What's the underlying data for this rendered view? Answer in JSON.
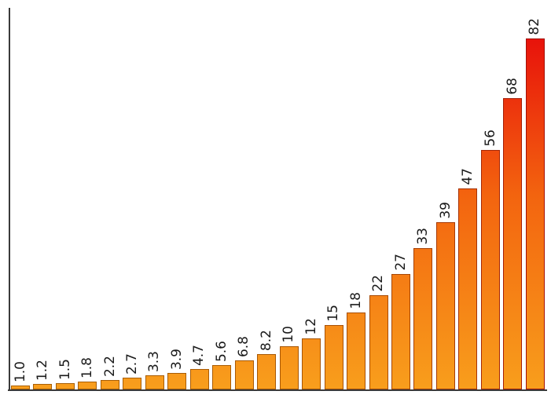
{
  "chart_data": {
    "type": "bar",
    "title": "",
    "xlabel": "",
    "ylabel": "",
    "categories": [
      "1.0",
      "1.2",
      "1.5",
      "1.8",
      "2.2",
      "2.7",
      "3.3",
      "3.9",
      "4.7",
      "5.6",
      "6.8",
      "8.2",
      "10",
      "12",
      "15",
      "18",
      "22",
      "27",
      "33",
      "39",
      "47",
      "56",
      "68",
      "82"
    ],
    "values": [
      1.0,
      1.2,
      1.5,
      1.8,
      2.2,
      2.7,
      3.3,
      3.9,
      4.7,
      5.6,
      6.8,
      8.2,
      10,
      12,
      15,
      18,
      22,
      27,
      33,
      39,
      47,
      56,
      68,
      82
    ],
    "bar_labels": [
      "1.0",
      "1.2",
      "1.5",
      "1.8",
      "2.2",
      "2.7",
      "3.3",
      "3.9",
      "4.7",
      "5.6",
      "6.8",
      "8.2",
      "10",
      "12",
      "15",
      "18",
      "22",
      "27",
      "33",
      "39",
      "47",
      "56",
      "68",
      "82"
    ],
    "bar_label_rotation_deg": 90,
    "bar_label_position": "above-bar",
    "ylim": [
      0,
      89
    ],
    "value_max": 82,
    "grid": false,
    "axis_ticks": "none",
    "legend": "none",
    "colors": {
      "background": "#FFFFFF",
      "axis": "#3A3A3A",
      "label_text": "#1A1A1A",
      "bar_gradient_bottom": "#F89E1C",
      "bar_gradient_mid": "#F3640F",
      "bar_gradient_top": "#E8120B",
      "bar_border_low": "#A86005",
      "bar_border_high": "#A31008"
    }
  }
}
